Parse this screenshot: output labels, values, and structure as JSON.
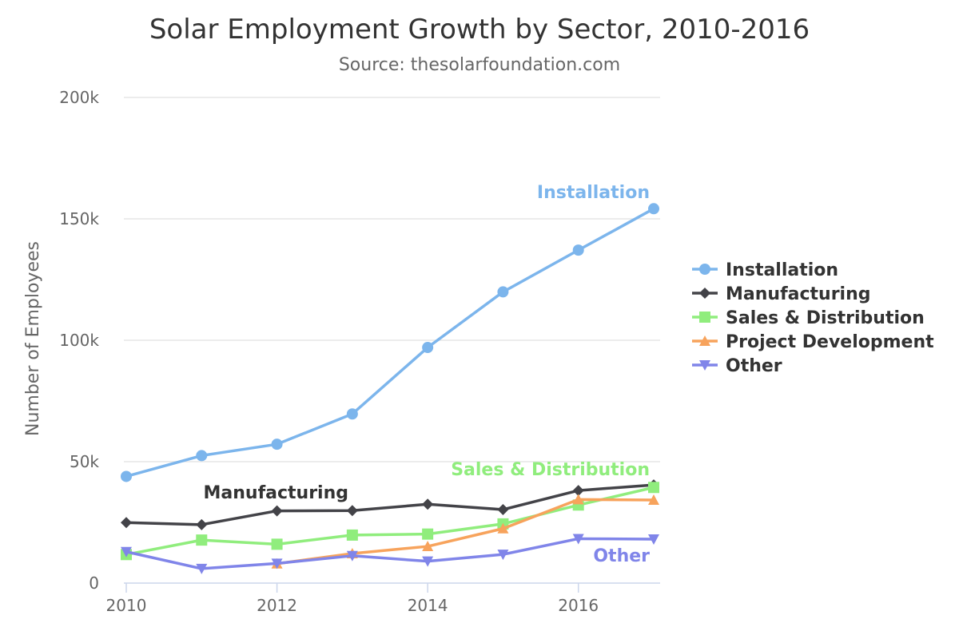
{
  "chart_data": {
    "type": "line",
    "title": "Solar Employment Growth by Sector, 2010-2016",
    "subtitle": "Source: thesolarfoundation.com",
    "xlabel": "",
    "ylabel": "Number of Employees",
    "x": [
      2010,
      2011,
      2012,
      2013,
      2014,
      2015,
      2016,
      2017
    ],
    "xticks": [
      2010,
      2012,
      2014,
      2016
    ],
    "xtick_labels": [
      "2010",
      "2012",
      "2014",
      "2016"
    ],
    "xlim": [
      2010,
      2017
    ],
    "ylim": [
      0,
      200000
    ],
    "yticks": [
      0,
      50000,
      100000,
      150000,
      200000
    ],
    "ytick_labels": [
      "0",
      "50k",
      "100k",
      "150k",
      "200k"
    ],
    "grid": true,
    "legend": "right",
    "series": [
      {
        "name": "Installation",
        "color": "#7cb5ec",
        "marker": "circle",
        "values": [
          43934,
          52503,
          57177,
          69658,
          97031,
          119931,
          137133,
          154175
        ],
        "label": "Installation"
      },
      {
        "name": "Manufacturing",
        "color": "#434348",
        "marker": "diamond",
        "values": [
          24916,
          24064,
          29742,
          29851,
          32490,
          30282,
          38121,
          40434
        ],
        "label": "Manufacturing"
      },
      {
        "name": "Sales & Distribution",
        "color": "#90ed7d",
        "marker": "square",
        "values": [
          11744,
          17722,
          16005,
          19771,
          20185,
          24377,
          32147,
          39387
        ],
        "label": "Sales & Distribution"
      },
      {
        "name": "Project Development",
        "color": "#f7a35c",
        "marker": "triangle",
        "values": [
          null,
          null,
          7988,
          12169,
          15112,
          22452,
          34400,
          34227
        ],
        "label": null
      },
      {
        "name": "Other",
        "color": "#8085e9",
        "marker": "triangle-down",
        "values": [
          12908,
          5948,
          8105,
          11248,
          8989,
          11816,
          18274,
          18111
        ],
        "label": "Other"
      }
    ]
  }
}
